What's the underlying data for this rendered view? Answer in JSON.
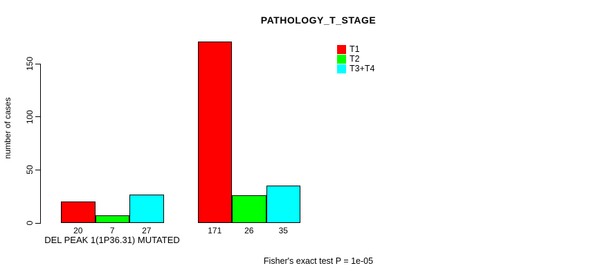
{
  "chart_data": {
    "type": "bar",
    "title": "PATHOLOGY_T_STAGE",
    "xlabel": "",
    "ylabel": "number of cases",
    "ylim": [
      0,
      150
    ],
    "yticks": [
      0,
      50,
      100,
      150
    ],
    "grid": false,
    "legend_position": "top-right-inside",
    "background_color": "#FFFFFF",
    "axis_color": "#000000",
    "series": [
      {
        "name": "T1",
        "color": "#FF0000"
      },
      {
        "name": "T2",
        "color": "#00FF00"
      },
      {
        "name": "T3+T4",
        "color": "#00FFFF"
      }
    ],
    "groups": [
      {
        "label": "DEL PEAK 1(1P36.31) MUTATED",
        "values": [
          20,
          7,
          27
        ]
      },
      {
        "label": "",
        "values": [
          171,
          26,
          35
        ]
      }
    ],
    "bar_value_labels": [
      [
        "20",
        "7",
        "27"
      ],
      [
        "171",
        "26",
        "35"
      ]
    ],
    "annotation": "Fisher's exact test P = 1e-05"
  }
}
